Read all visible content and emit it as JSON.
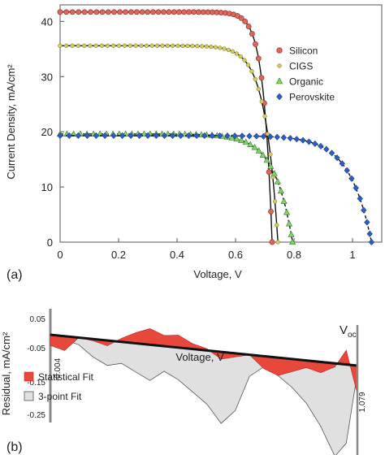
{
  "chart_data": [
    {
      "panel": "(a)",
      "type": "scatter",
      "xlabel": "Voltage, V",
      "ylabel": "Current Density, mA/cm²",
      "xlim": [
        0,
        1.1
      ],
      "ylim": [
        0,
        43
      ],
      "x_ticks": [
        "0",
        "0.2",
        "0.4",
        "0.6",
        "0.8",
        "1"
      ],
      "y_ticks": [
        "0",
        "10",
        "20",
        "30",
        "40"
      ],
      "legend_position": "right",
      "grid": false,
      "series": [
        {
          "name": "Silicon",
          "marker": "circle",
          "color": "#e0655a",
          "fit_line": "solid",
          "params": {
            "jsc": 41.7,
            "voc": 0.725,
            "n": 1.12
          },
          "x": [
            0,
            0.1,
            0.2,
            0.3,
            0.4,
            0.5,
            0.6,
            0.65,
            0.7,
            0.725
          ],
          "y": [
            41.7,
            41.7,
            41.7,
            41.6,
            41.5,
            41.0,
            37.5,
            32.0,
            17.5,
            0
          ]
        },
        {
          "name": "CIGS",
          "marker": "dot",
          "color": "#d2cc5a",
          "fit_line": "solid",
          "params": {
            "jsc": 35.6,
            "voc": 0.745,
            "n": 1.7
          },
          "x": [
            0,
            0.1,
            0.2,
            0.3,
            0.4,
            0.5,
            0.6,
            0.65,
            0.7,
            0.745
          ],
          "y": [
            35.6,
            35.5,
            35.4,
            35.2,
            34.8,
            33.8,
            29.5,
            24.5,
            15.0,
            0
          ]
        },
        {
          "name": "Organic",
          "marker": "triangle",
          "color": "#7fd466",
          "fit_line": "dashed",
          "params": {
            "jsc": 19.6,
            "voc": 0.795,
            "n": 2.4
          },
          "x": [
            0,
            0.1,
            0.2,
            0.3,
            0.4,
            0.5,
            0.6,
            0.65,
            0.7,
            0.75,
            0.795
          ],
          "y": [
            19.6,
            19.5,
            19.4,
            19.3,
            19.1,
            18.7,
            17.5,
            16.0,
            13.0,
            8.0,
            0
          ]
        },
        {
          "name": "Perovskite",
          "marker": "diamond",
          "color": "#2b5bc9",
          "fit_line": "dashed",
          "params": {
            "jsc": 19.3,
            "voc": 1.065,
            "n": 2.9
          },
          "x": [
            0,
            0.2,
            0.4,
            0.6,
            0.8,
            0.85,
            0.9,
            0.95,
            1.0,
            1.065
          ],
          "y": [
            19.3,
            19.3,
            19.2,
            19.1,
            18.8,
            18.4,
            17.4,
            15.5,
            11.0,
            0
          ]
        }
      ]
    },
    {
      "panel": "(b)",
      "type": "area",
      "ylabel": "Residual, mA/cm²",
      "axis_label": "Voltage, V",
      "y_ticks": [
        "0.05",
        "-0.05",
        "-0.15",
        "-0.25"
      ],
      "ylim": [
        -0.25,
        0.05
      ],
      "x_range_labels": [
        "-0.004",
        "1.079"
      ],
      "voc_label": "V",
      "voc_subscript": "oc",
      "legend_position": "left",
      "series": [
        {
          "name": "Statistical Fit",
          "color": "#e8473c",
          "x": [
            0,
            0.05,
            0.1,
            0.15,
            0.2,
            0.25,
            0.3,
            0.35,
            0.4,
            0.45,
            0.5,
            0.55,
            0.6,
            0.65,
            0.7,
            0.75,
            0.8,
            0.85,
            0.9,
            0.95,
            1.0,
            1.04,
            1.079
          ],
          "y": [
            -0.03,
            -0.04,
            0.0,
            -0.005,
            -0.015,
            0.01,
            0.03,
            0.045,
            0.03,
            0.035,
            0.015,
            0.005,
            -0.02,
            -0.01,
            0.0,
            -0.035,
            -0.05,
            -0.035,
            -0.02,
            -0.03,
            -0.01,
            0.04,
            -0.08
          ]
        },
        {
          "name": "3-point Fit",
          "color": "#e0e0e0",
          "x": [
            0,
            0.05,
            0.1,
            0.15,
            0.2,
            0.25,
            0.3,
            0.35,
            0.4,
            0.45,
            0.5,
            0.55,
            0.6,
            0.65,
            0.7,
            0.75,
            0.8,
            0.85,
            0.9,
            0.95,
            1.0,
            1.04,
            1.079
          ],
          "y": [
            0.0,
            -0.01,
            -0.02,
            -0.05,
            -0.07,
            -0.06,
            -0.08,
            -0.1,
            -0.07,
            -0.09,
            -0.12,
            -0.15,
            -0.2,
            -0.16,
            -0.06,
            -0.03,
            -0.05,
            -0.08,
            -0.12,
            -0.18,
            -0.26,
            -0.22,
            -0.02
          ]
        }
      ]
    }
  ]
}
